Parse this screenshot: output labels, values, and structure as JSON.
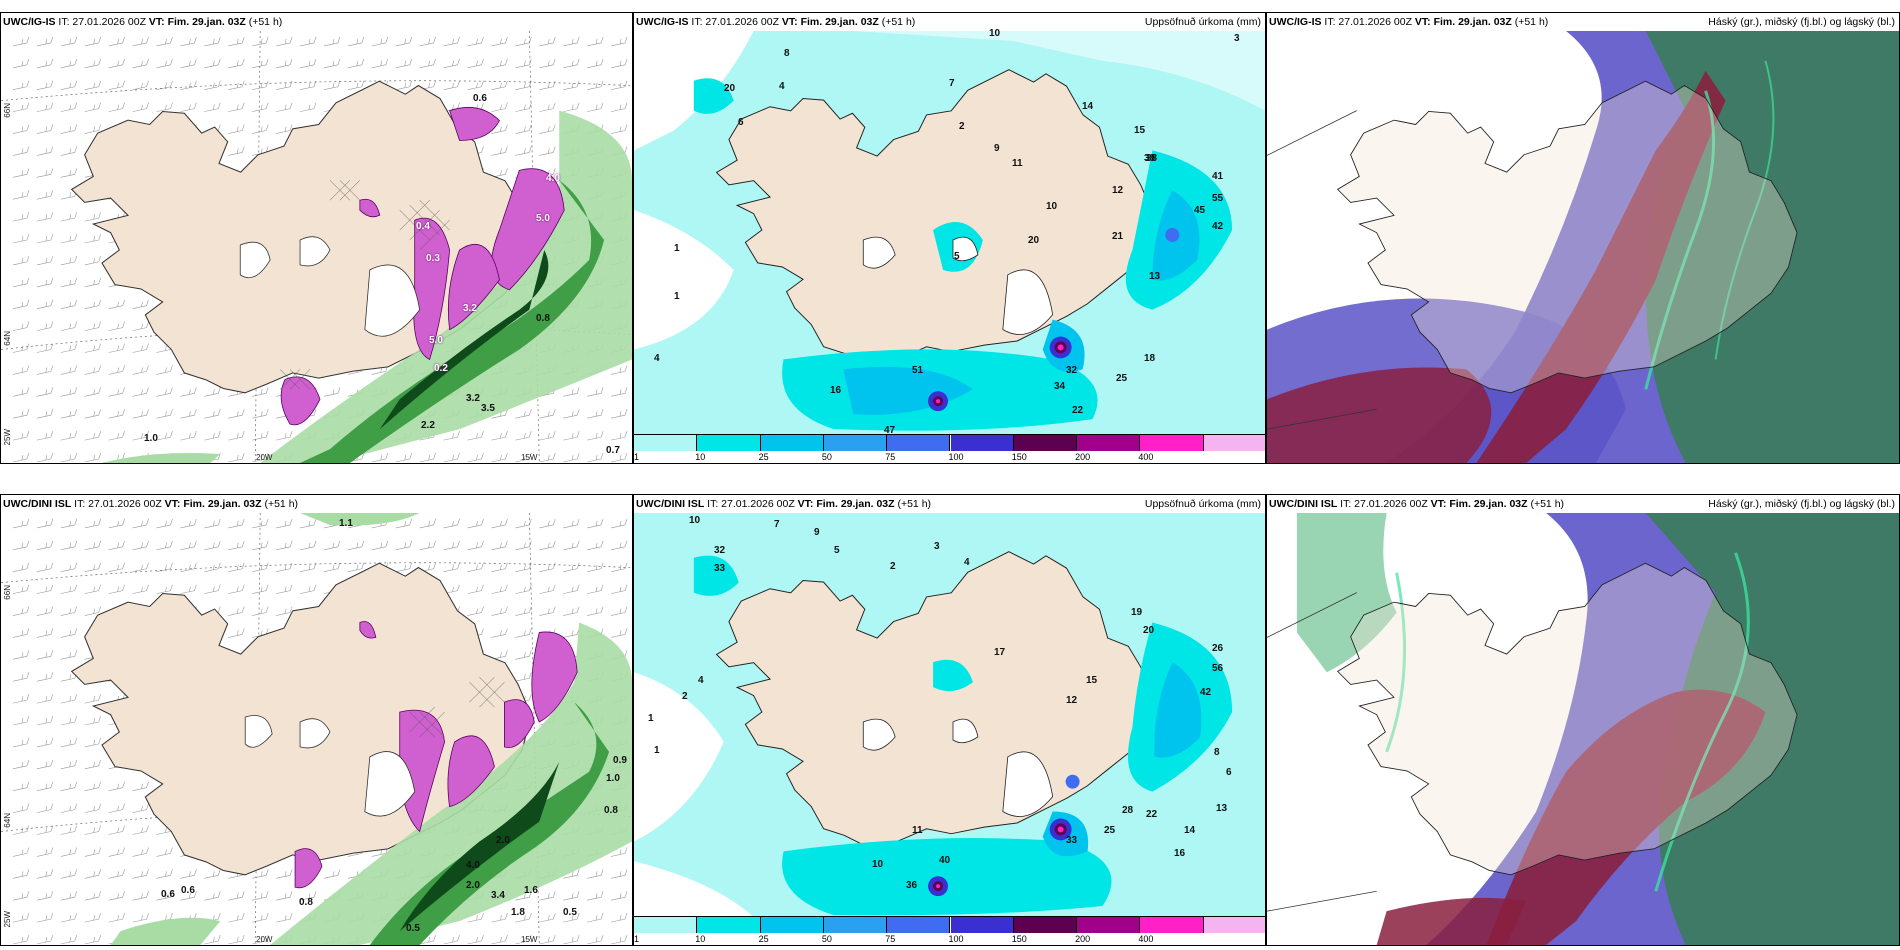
{
  "colors": {
    "land": "#f3e3d2",
    "sea_white": "#ffffff",
    "precip_green_light": "#a8dca4",
    "precip_green": "#3f9e46",
    "precip_green_dark": "#0f4a1b",
    "snow_magenta": "#d060d0",
    "accum_cyan": "#aef7f4",
    "cloud_blue": "#5b54c8",
    "cloud_red": "#8a2040",
    "cloud_green": "#3e7a66"
  },
  "panels": {
    "top_left": {
      "model": "UWC/IG-IS",
      "it": "IT: 27.01.2026 00Z",
      "vt": "VT: Fim. 29.jan. 03Z",
      "lead": "(+51 h)",
      "lat1": "66N",
      "lat2": "64N",
      "lon1": "25W",
      "lon2": "20W",
      "lon3": "15W",
      "values": [
        "0.6",
        "1.0",
        "0.8",
        "0.7",
        "2.2",
        "3.2",
        "5.0",
        "0.4",
        "0.3",
        "0.2",
        "3.2",
        "5.0",
        "4.0",
        "3.5"
      ]
    },
    "top_mid": {
      "model": "UWC/IG-IS",
      "it": "IT: 27.01.2026 00Z",
      "vt": "VT: Fim. 29.jan. 03Z",
      "lead": "(+51 h)",
      "right": "Uppsöfnuð úrkoma (mm)",
      "values": [
        "10",
        "8",
        "38",
        "20",
        "7",
        "4",
        "6",
        "1",
        "2",
        "3",
        "5",
        "9",
        "11",
        "14",
        "10",
        "12",
        "13",
        "15",
        "16",
        "18",
        "20",
        "21",
        "25",
        "32",
        "34",
        "38",
        "41",
        "42",
        "45",
        "55",
        "1",
        "4",
        "51",
        "22",
        "47"
      ]
    },
    "top_right": {
      "model": "UWC/IG-IS",
      "it": "IT: 27.01.2026 00Z",
      "vt": "VT: Fim. 29.jan. 03Z",
      "lead": "(+51 h)",
      "right": "Háský (gr.), miðský (fj.bl.) og lágský (bl.)"
    },
    "bot_left": {
      "model": "UWC/DINI ISL",
      "it": "IT: 27.01.2026 00Z",
      "vt": "VT: Fim. 29.jan. 03Z",
      "lead": "(+51 h)",
      "lat1": "66N",
      "lat2": "64N",
      "lon1": "25W",
      "lon2": "20W",
      "lon3": "15W",
      "values": [
        "1.1",
        "0.9",
        "1.0",
        "0.8",
        "0.5",
        "0.6",
        "0.6",
        "0.8",
        "0.5",
        "2.0",
        "4.0",
        "2.0",
        "3.4",
        "1.6",
        "1.8"
      ]
    },
    "bot_mid": {
      "model": "UWC/DINI ISL",
      "it": "IT: 27.01.2026 00Z",
      "vt": "VT: Fim. 29.jan. 03Z",
      "lead": "(+51 h)",
      "right": "Uppsöfnuð úrkoma (mm)",
      "values": [
        "10",
        "7",
        "9",
        "32",
        "33",
        "5",
        "3",
        "4",
        "2",
        "1",
        "17",
        "19",
        "20",
        "26",
        "42",
        "56",
        "40",
        "10",
        "12",
        "13",
        "14",
        "16",
        "22",
        "25",
        "28",
        "33",
        "36",
        "11",
        "15",
        "8",
        "6",
        "1",
        "4",
        "2"
      ]
    },
    "bot_right": {
      "model": "UWC/DINI ISL",
      "it": "IT: 27.01.2026 00Z",
      "vt": "VT: Fim. 29.jan. 03Z",
      "lead": "(+51 h)",
      "right": "Háský (gr.), miðský (fj.bl.) og lágský (bl.)"
    }
  },
  "colorbar": {
    "ticks": [
      "1",
      "10",
      "25",
      "50",
      "75",
      "100",
      "150",
      "200",
      "400"
    ],
    "colors": [
      "#aef7f4",
      "#00e6e6",
      "#00c4ee",
      "#2aa0f0",
      "#3f6cf0",
      "#3a2fd0",
      "#5e0050",
      "#a0008a",
      "#ff20c8",
      "#f4b4f0"
    ]
  }
}
